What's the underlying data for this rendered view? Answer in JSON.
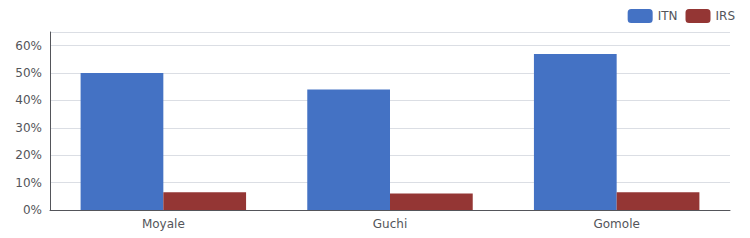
{
  "chart_data": {
    "type": "bar",
    "categories": [
      "Moyale",
      "Guchi",
      "Gomole"
    ],
    "series": [
      {
        "name": "ITN",
        "color": "#4472C4",
        "values": [
          0.5,
          0.44,
          0.57
        ]
      },
      {
        "name": "IRS",
        "color": "#943634",
        "values": [
          0.065,
          0.06,
          0.065
        ]
      }
    ],
    "ylim": [
      0,
      0.65
    ],
    "yticks": [
      {
        "value": 0.0,
        "label": "0%"
      },
      {
        "value": 0.1,
        "label": "10%"
      },
      {
        "value": 0.2,
        "label": "20%"
      },
      {
        "value": 0.3,
        "label": "30%"
      },
      {
        "value": 0.4,
        "label": "40%"
      },
      {
        "value": 0.5,
        "label": "50%"
      },
      {
        "value": 0.6,
        "label": "60%"
      }
    ],
    "grid": true,
    "legend": "upper right"
  }
}
